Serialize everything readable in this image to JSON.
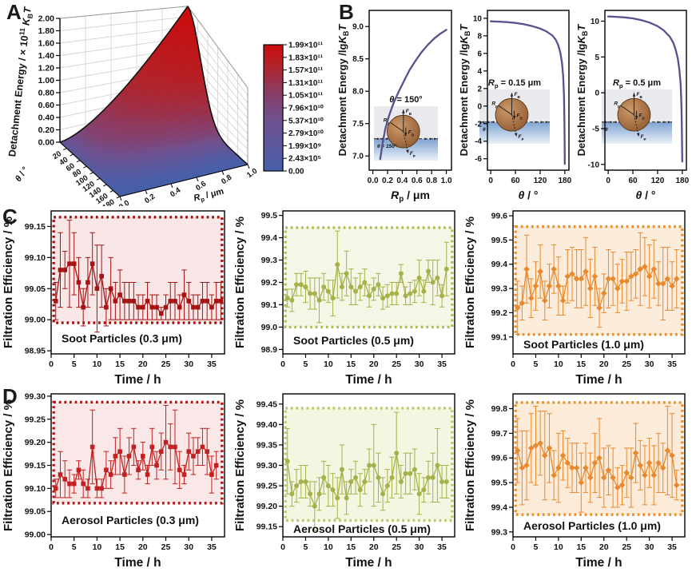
{
  "figure": {
    "panel_labels": [
      "A",
      "B",
      "C",
      "D"
    ]
  },
  "colors": {
    "surface_low": "#485FAA",
    "surface_high": "#CA0C0C",
    "b_curve": "#57518F",
    "soot_03": "#A51212",
    "soot_05": "#A4B249",
    "soot_10": "#E8892D",
    "aerosol_03": "#C42020",
    "aerosol_05": "#A4B249",
    "aerosol_10": "#E8892D"
  },
  "chart_data": [
    {
      "id": "surface3d",
      "type": "heatmap",
      "zlabel_parts": [
        {
          "t": "Detachment Energy / × 10"
        },
        {
          "t": "11",
          "u": 1
        },
        {
          "t": " "
        },
        {
          "t": "K",
          "i": 1
        },
        {
          "t": "B",
          "s": 1
        },
        {
          "t": "T",
          "i": 1
        }
      ],
      "zticks": [
        "0.00",
        "0.20",
        "0.40",
        "0.60",
        "0.80",
        "1.00",
        "1.20",
        "1.40",
        "1.60",
        "1.80",
        "2.00"
      ],
      "z_range": [
        0,
        2
      ],
      "theta_label_parts": [
        {
          "t": "θ",
          "i": 1
        },
        {
          "t": " / °"
        }
      ],
      "theta_ticks": [
        "20",
        "40",
        "60",
        "80",
        "100",
        "120",
        "140",
        "160",
        "180"
      ],
      "theta_range": [
        0,
        180
      ],
      "r_label_parts": [
        {
          "t": "R",
          "i": 1
        },
        {
          "t": "p",
          "s": 1
        },
        {
          "t": " / μm"
        }
      ],
      "r_ticks": [
        "0.0",
        "0.2",
        "0.4",
        "0.6",
        "0.8",
        "1.0"
      ],
      "r_range": [
        0,
        1
      ],
      "colorbar_labels": [
        "1.99×10¹¹",
        "1.83×10¹¹",
        "1.57×10¹¹",
        "1.31×10¹¹",
        "1.05×10¹¹",
        "7.96×10¹⁰",
        "5.37×10¹⁰",
        "2.79×10¹⁰",
        "1.99×10⁹",
        "2.43×10⁵",
        "0.00"
      ]
    },
    {
      "id": "b1",
      "type": "line",
      "ylabel_parts": [
        {
          "t": "Detachment Energy /lg"
        },
        {
          "t": "K",
          "i": 1
        },
        {
          "t": "B",
          "s": 1
        },
        {
          "t": "T",
          "i": 1
        }
      ],
      "xlabel_parts": [
        {
          "t": "R",
          "i": 1
        },
        {
          "t": "p",
          "s": 1
        },
        {
          "t": " / μm"
        }
      ],
      "yticks": [
        "7.0",
        "7.5",
        "8.0",
        "8.5",
        "9.0"
      ],
      "yrange": [
        6.78,
        9.25
      ],
      "xticks": [
        "0.0",
        "0.2",
        "0.4",
        "0.6",
        "0.8",
        "1.0"
      ],
      "xtickvals": [
        0,
        0.2,
        0.4,
        0.6,
        0.8,
        1.0
      ],
      "xrange": [
        -0.05,
        1.07
      ],
      "curve": [
        [
          0.1,
          6.95
        ],
        [
          0.13,
          7.18
        ],
        [
          0.17,
          7.42
        ],
        [
          0.22,
          7.62
        ],
        [
          0.28,
          7.81
        ],
        [
          0.35,
          7.99
        ],
        [
          0.42,
          8.15
        ],
        [
          0.5,
          8.33
        ],
        [
          0.58,
          8.47
        ],
        [
          0.66,
          8.6
        ],
        [
          0.75,
          8.72
        ],
        [
          0.84,
          8.82
        ],
        [
          0.92,
          8.89
        ],
        [
          1.0,
          8.95
        ]
      ],
      "inset": {
        "title_parts": [
          {
            "t": "θ",
            "i": 1
          },
          {
            "t": " = 150°"
          }
        ],
        "water_label_parts": [
          {
            "t": "θ",
            "i": 1
          },
          {
            "t": " = 150°"
          }
        ]
      }
    },
    {
      "id": "b2",
      "type": "line",
      "ylabel_parts": [
        {
          "t": "Detachment Energy /lg"
        },
        {
          "t": "K",
          "i": 1
        },
        {
          "t": "B",
          "s": 1
        },
        {
          "t": "T",
          "i": 1
        }
      ],
      "xlabel_parts": [
        {
          "t": "θ",
          "i": 1
        },
        {
          "t": " / °"
        }
      ],
      "yticks": [
        "-6",
        "-4",
        "-2",
        "0",
        "2",
        "4",
        "6",
        "8",
        "10"
      ],
      "yrange": [
        -7.3,
        10.9
      ],
      "xticks": [
        "0",
        "60",
        "120",
        "180"
      ],
      "xtickvals": [
        0,
        60,
        120,
        180
      ],
      "xrange": [
        -8,
        190
      ],
      "curve": [
        [
          0,
          9.65
        ],
        [
          20,
          9.62
        ],
        [
          40,
          9.56
        ],
        [
          60,
          9.47
        ],
        [
          80,
          9.33
        ],
        [
          100,
          9.12
        ],
        [
          120,
          8.83
        ],
        [
          135,
          8.52
        ],
        [
          150,
          8.02
        ],
        [
          158,
          7.55
        ],
        [
          164,
          6.95
        ],
        [
          169,
          6.1
        ],
        [
          173,
          5.0
        ],
        [
          176,
          3.4
        ],
        [
          178,
          1.2
        ],
        [
          179,
          -1.5
        ],
        [
          179.6,
          -4.0
        ],
        [
          180,
          -6.6
        ]
      ],
      "inset": {
        "title_parts": [
          {
            "t": "R",
            "i": 1
          },
          {
            "t": "p",
            "s": 1
          },
          {
            "t": " = 0.15 μm"
          }
        ],
        "water_label_parts": [
          {
            "t": "θ",
            "i": 1
          }
        ]
      }
    },
    {
      "id": "b3",
      "type": "line",
      "ylabel_parts": [
        {
          "t": "Detachment Energy /lg"
        },
        {
          "t": "K",
          "i": 1
        },
        {
          "t": "B",
          "s": 1
        },
        {
          "t": "T",
          "i": 1
        }
      ],
      "xlabel_parts": [
        {
          "t": "θ",
          "i": 1
        },
        {
          "t": " / °"
        }
      ],
      "yticks": [
        "-10",
        "-5",
        "0",
        "5",
        "10"
      ],
      "yrange": [
        -10.8,
        11.5
      ],
      "xticks": [
        "0",
        "60",
        "120",
        "180"
      ],
      "xtickvals": [
        0,
        60,
        120,
        180
      ],
      "xrange": [
        -8,
        190
      ],
      "curve": [
        [
          0,
          10.65
        ],
        [
          20,
          10.6
        ],
        [
          40,
          10.52
        ],
        [
          60,
          10.38
        ],
        [
          80,
          10.15
        ],
        [
          100,
          9.8
        ],
        [
          120,
          9.3
        ],
        [
          135,
          8.7
        ],
        [
          150,
          7.8
        ],
        [
          158,
          7.0
        ],
        [
          164,
          6.0
        ],
        [
          169,
          4.8
        ],
        [
          173,
          3.2
        ],
        [
          176,
          1.2
        ],
        [
          178,
          -1.8
        ],
        [
          179,
          -5.0
        ],
        [
          179.6,
          -7.5
        ],
        [
          180,
          -9.6
        ]
      ],
      "inset": {
        "title_parts": [
          {
            "t": "R",
            "i": 1
          },
          {
            "t": "p",
            "s": 1
          },
          {
            "t": " = 0.5 μm"
          }
        ],
        "water_label_parts": [
          {
            "t": "θ",
            "i": 1
          }
        ]
      }
    },
    {
      "id": "c1",
      "type": "scatter",
      "marker": "square",
      "label": "Soot Particles (0.3 μm)",
      "color": "#A51212",
      "band_color": "#A50F0F",
      "fill": "#F9E6E6",
      "ylabel": "Filtration Efficiency / %",
      "xlabel": "Time / h",
      "yticks": [
        "98.95",
        "99.00",
        "99.05",
        "99.10",
        "99.15"
      ],
      "yrange": [
        98.945,
        99.175
      ],
      "xticks": [
        0,
        5,
        10,
        15,
        20,
        25,
        30,
        35
      ],
      "xrange": [
        0,
        37.8
      ],
      "band": [
        98.995,
        99.165
      ],
      "x_start": 1,
      "values": [
        99.03,
        99.08,
        99.08,
        99.09,
        99.09,
        99.06,
        99.02,
        99.06,
        99.09,
        99.05,
        99.07,
        99.02,
        99.05,
        99.03,
        99.04,
        99.03,
        99.03,
        99.03,
        99.02,
        99.02,
        99.03,
        99.02,
        99.02,
        99.01,
        99.02,
        99.03,
        99.03,
        99.02,
        99.04,
        99.03,
        99.02,
        99.02,
        99.03,
        99.03,
        99.02,
        99.03,
        99.03
      ],
      "errors": [
        0.03,
        0.06,
        0.03,
        0.07,
        0.05,
        0.04,
        0.03,
        0.04,
        0.05,
        0.07,
        0.05,
        0.03,
        0.05,
        0.03,
        0.04,
        0.03,
        0.03,
        0.03,
        0.02,
        0.02,
        0.03,
        0.02,
        0.02,
        0.01,
        0.02,
        0.03,
        0.03,
        0.02,
        0.04,
        0.03,
        0.02,
        0.02,
        0.03,
        0.03,
        0.02,
        0.03,
        0.03
      ]
    },
    {
      "id": "c2",
      "type": "scatter",
      "marker": "circle",
      "label": "Soot Particles (0.5 μm)",
      "color": "#A4B249",
      "band_color": "#AFBE54",
      "fill": "#F5F6E6",
      "ylabel": "Filtration Efficiency / %",
      "xlabel": "Time / h",
      "yticks": [
        "98.9",
        "99.0",
        "99.1",
        "99.2",
        "99.3",
        "99.4",
        "99.5"
      ],
      "yrange": [
        98.88,
        99.52
      ],
      "xticks": [
        0,
        5,
        10,
        15,
        20,
        25,
        30,
        35
      ],
      "xrange": [
        0,
        37.8
      ],
      "band": [
        99.0,
        99.445
      ],
      "x_start": 1,
      "values": [
        99.13,
        99.12,
        99.19,
        99.19,
        99.18,
        99.15,
        99.15,
        99.12,
        99.18,
        99.16,
        99.13,
        99.28,
        99.18,
        99.24,
        99.18,
        99.16,
        99.18,
        99.2,
        99.14,
        99.17,
        99.19,
        99.13,
        99.14,
        99.15,
        99.15,
        99.24,
        99.14,
        99.15,
        99.16,
        99.22,
        99.16,
        99.25,
        99.2,
        99.22,
        99.14,
        99.26
      ],
      "errors": [
        0.04,
        0.05,
        0.05,
        0.05,
        0.07,
        0.07,
        0.07,
        0.1,
        0.06,
        0.05,
        0.08,
        0.15,
        0.06,
        0.1,
        0.08,
        0.06,
        0.06,
        0.06,
        0.05,
        0.05,
        0.05,
        0.05,
        0.05,
        0.05,
        0.05,
        0.04,
        0.04,
        0.05,
        0.05,
        0.08,
        0.05,
        0.05,
        0.1,
        0.08,
        0.05,
        0.12
      ]
    },
    {
      "id": "c3",
      "type": "scatter",
      "marker": "diamond",
      "label": "Soot Particles (1.0 μm)",
      "color": "#E8892D",
      "band_color": "#E8912B",
      "fill": "#FBECDB",
      "ylabel": "Filtration Efficiency / %",
      "xlabel": "Time / h",
      "yticks": [
        "99.1",
        "99.2",
        "99.3",
        "99.4",
        "99.5",
        "99.6"
      ],
      "yrange": [
        99.03,
        99.62
      ],
      "xticks": [
        0,
        5,
        10,
        15,
        20,
        25,
        30,
        35
      ],
      "xrange": [
        0,
        37.8
      ],
      "band": [
        99.11,
        99.555
      ],
      "x_start": 1,
      "values": [
        99.22,
        99.24,
        99.38,
        99.26,
        99.31,
        99.37,
        99.25,
        99.31,
        99.38,
        99.31,
        99.25,
        99.35,
        99.36,
        99.34,
        99.34,
        99.37,
        99.3,
        99.35,
        99.22,
        99.28,
        99.34,
        99.34,
        99.3,
        99.33,
        99.33,
        99.35,
        99.36,
        99.38,
        99.39,
        99.35,
        99.38,
        99.32,
        99.32,
        99.34,
        99.31,
        99.34
      ],
      "errors": [
        0.11,
        0.07,
        0.14,
        0.08,
        0.1,
        0.11,
        0.08,
        0.09,
        0.1,
        0.12,
        0.06,
        0.11,
        0.11,
        0.12,
        0.12,
        0.14,
        0.12,
        0.12,
        0.08,
        0.08,
        0.12,
        0.11,
        0.1,
        0.09,
        0.12,
        0.1,
        0.1,
        0.15,
        0.12,
        0.13,
        0.12,
        0.09,
        0.15,
        0.13,
        0.1,
        0.12
      ]
    },
    {
      "id": "d1",
      "type": "scatter",
      "marker": "square",
      "label": "Aerosol Particles  (0.3 μm)",
      "color": "#C42020",
      "band_color": "#B51515",
      "fill": "#FAE7E7",
      "ylabel": "Filtration Efficiency / %",
      "xlabel": "Time / h",
      "yticks": [
        "99.00",
        "99.05",
        "99.10",
        "99.15",
        "99.20",
        "99.25",
        "99.30"
      ],
      "yrange": [
        98.995,
        99.305
      ],
      "xticks": [
        0,
        5,
        10,
        15,
        20,
        25,
        30,
        35
      ],
      "xrange": [
        0,
        37.8
      ],
      "band": [
        99.068,
        99.287
      ],
      "x_start": 1,
      "values": [
        99.1,
        99.13,
        99.12,
        99.11,
        99.11,
        99.14,
        99.11,
        99.1,
        99.19,
        99.1,
        99.1,
        99.14,
        99.13,
        99.17,
        99.18,
        99.13,
        99.17,
        99.19,
        99.14,
        99.17,
        99.13,
        99.19,
        99.15,
        99.18,
        99.2,
        99.19,
        99.19,
        99.14,
        99.13,
        99.18,
        99.17,
        99.18,
        99.19,
        99.18,
        99.13,
        99.15
      ],
      "errors": [
        0.02,
        0.05,
        0.04,
        0.03,
        0.02,
        0.02,
        0.03,
        0.02,
        0.08,
        0.02,
        0.02,
        0.04,
        0.03,
        0.04,
        0.05,
        0.04,
        0.04,
        0.04,
        0.02,
        0.03,
        0.02,
        0.04,
        0.03,
        0.04,
        0.08,
        0.05,
        0.08,
        0.04,
        0.02,
        0.04,
        0.04,
        0.03,
        0.04,
        0.05,
        0.04,
        0.03
      ]
    },
    {
      "id": "d2",
      "type": "scatter",
      "marker": "circle",
      "label": "Aerosol Particles  (0.5 μm)",
      "color": "#A4B249",
      "band_color": "#BCC96A",
      "fill": "#F4F6E2",
      "ylabel": "Filtration Efficiency / %",
      "xlabel": "Time / h",
      "yticks": [
        "99.15",
        "99.20",
        "99.25",
        "99.30",
        "99.35",
        "99.40",
        "99.45"
      ],
      "yrange": [
        99.125,
        99.475
      ],
      "xticks": [
        0,
        5,
        10,
        15,
        20,
        25,
        30,
        35
      ],
      "xrange": [
        0,
        37.8
      ],
      "band": [
        99.165,
        99.44
      ],
      "x_start": 1,
      "values": [
        99.31,
        99.23,
        99.25,
        99.26,
        99.26,
        99.23,
        99.2,
        99.23,
        99.27,
        99.25,
        99.24,
        99.22,
        99.29,
        99.22,
        99.26,
        99.27,
        99.24,
        99.26,
        99.3,
        99.3,
        99.27,
        99.23,
        99.25,
        99.27,
        99.33,
        99.26,
        99.28,
        99.28,
        99.29,
        99.23,
        99.24,
        99.27,
        99.27,
        99.3,
        99.26,
        99.26
      ],
      "errors": [
        0.08,
        0.03,
        0.04,
        0.04,
        0.04,
        0.03,
        0.06,
        0.04,
        0.04,
        0.05,
        0.04,
        0.05,
        0.06,
        0.04,
        0.03,
        0.04,
        0.04,
        0.03,
        0.04,
        0.1,
        0.06,
        0.04,
        0.04,
        0.05,
        0.1,
        0.04,
        0.05,
        0.05,
        0.05,
        0.05,
        0.03,
        0.04,
        0.06,
        0.09,
        0.04,
        0.04
      ]
    },
    {
      "id": "d3",
      "type": "scatter",
      "marker": "diamond",
      "label": "Aerosol Particles  (1.0 μm)",
      "color": "#E8892D",
      "band_color": "#E8912B",
      "fill": "#FCEBD9",
      "ylabel": "Filtration Efficiency / %",
      "xlabel": "Time / h",
      "yticks": [
        "99.3",
        "99.4",
        "99.5",
        "99.6",
        "99.7",
        "99.8"
      ],
      "yrange": [
        99.28,
        99.86
      ],
      "xticks": [
        0,
        5,
        10,
        15,
        20,
        25,
        30,
        35
      ],
      "xrange": [
        0,
        37.8
      ],
      "band": [
        99.37,
        99.825
      ],
      "x_start": 1,
      "values": [
        99.63,
        99.56,
        99.57,
        99.64,
        99.65,
        99.66,
        99.61,
        99.64,
        99.53,
        99.56,
        99.61,
        99.58,
        99.56,
        99.56,
        99.5,
        99.56,
        99.52,
        99.58,
        99.6,
        99.52,
        99.55,
        99.52,
        99.48,
        99.49,
        99.54,
        99.52,
        99.62,
        99.57,
        99.53,
        99.58,
        99.53,
        99.58,
        99.56,
        99.63,
        99.61,
        99.49
      ],
      "errors": [
        0.13,
        0.15,
        0.14,
        0.14,
        0.16,
        0.13,
        0.18,
        0.14,
        0.1,
        0.14,
        0.1,
        0.1,
        0.1,
        0.1,
        0.12,
        0.1,
        0.1,
        0.12,
        0.16,
        0.12,
        0.1,
        0.12,
        0.08,
        0.08,
        0.1,
        0.12,
        0.12,
        0.1,
        0.12,
        0.1,
        0.12,
        0.12,
        0.1,
        0.18,
        0.17,
        0.06
      ]
    }
  ]
}
